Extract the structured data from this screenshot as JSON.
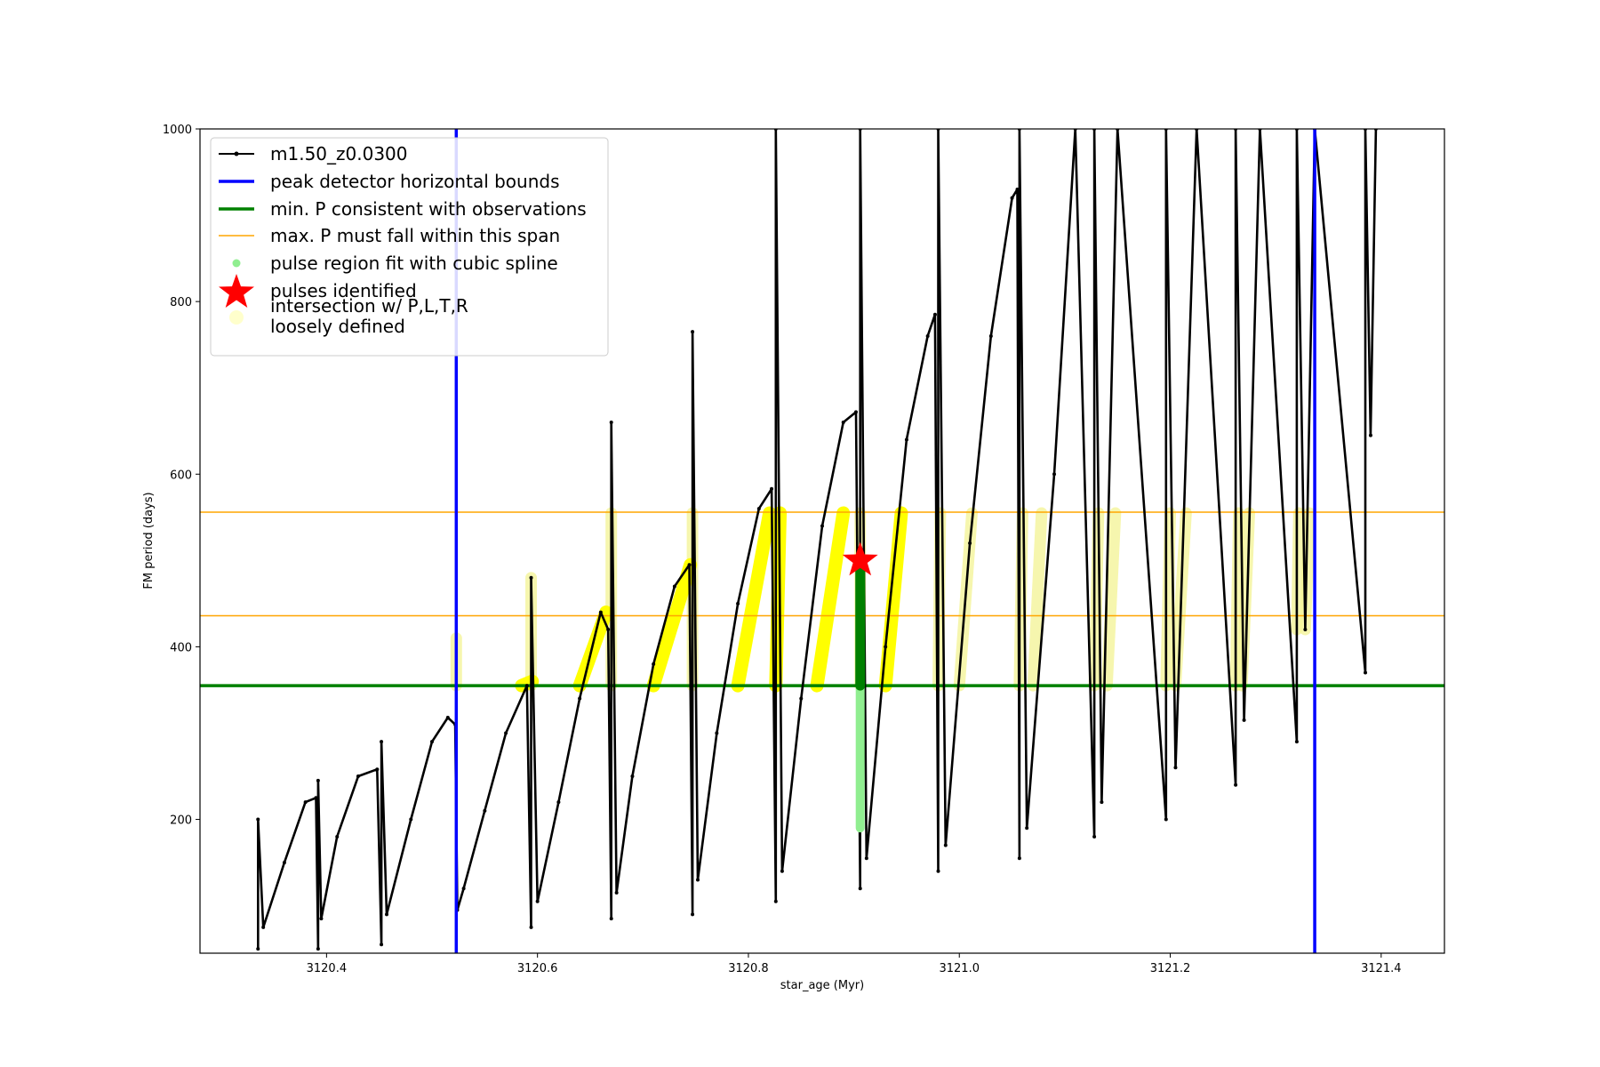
{
  "chart_data": {
    "type": "line",
    "title": "",
    "xlabel": "star_age (Myr)",
    "ylabel": "FM period (days)",
    "xlim": [
      3120.28,
      3121.46
    ],
    "ylim": [
      45,
      1000
    ],
    "xticks": [
      3120.4,
      3120.6,
      3120.8,
      3121.0,
      3121.2,
      3121.4
    ],
    "xtick_labels": [
      "3120.4",
      "3120.6",
      "3120.8",
      "3121.0",
      "3121.2",
      "3121.4"
    ],
    "yticks": [
      200,
      400,
      600,
      800,
      1000
    ],
    "ytick_labels": [
      "200",
      "400",
      "600",
      "800",
      "1000"
    ],
    "grid": false,
    "legend_position": "top-left",
    "legend": [
      {
        "label": "m1.50_z0.0300",
        "kind": "line-marker",
        "color": "#000000"
      },
      {
        "label": "peak detector horizontal bounds",
        "kind": "line",
        "color": "#0000ff"
      },
      {
        "label": "min. P consistent with observations",
        "kind": "line",
        "color": "#008000"
      },
      {
        "label": "max. P must fall within this span",
        "kind": "line",
        "color": "#ffa500"
      },
      {
        "label": "pulse region fit with cubic spline",
        "kind": "dot",
        "color": "#90ee90"
      },
      {
        "label": "pulses identified",
        "kind": "star",
        "color": "#ff0000"
      },
      {
        "label": "intersection w/ P,L,T,R\nloosely defined",
        "kind": "dot",
        "color": "#ffffcc"
      }
    ],
    "series": [
      {
        "name": "m1.50_z0.0300",
        "color": "#000000",
        "x": [
          3120.335,
          3120.335,
          3120.34,
          3120.36,
          3120.38,
          3120.39,
          3120.392,
          3120.392,
          3120.395,
          3120.41,
          3120.43,
          3120.448,
          3120.452,
          3120.452,
          3120.457,
          3120.48,
          3120.5,
          3120.515,
          3120.522,
          3120.524,
          3120.53,
          3120.55,
          3120.57,
          3120.59,
          3120.594,
          3120.594,
          3120.6,
          3120.62,
          3120.64,
          3120.66,
          3120.667,
          3120.67,
          3120.67,
          3120.675,
          3120.69,
          3120.71,
          3120.73,
          3120.744,
          3120.747,
          3120.747,
          3120.752,
          3120.77,
          3120.79,
          3120.81,
          3120.822,
          3120.826,
          3120.826,
          3120.832,
          3120.85,
          3120.87,
          3120.89,
          3120.902,
          3120.906,
          3120.906,
          3120.912,
          3120.93,
          3120.95,
          3120.97,
          3120.977,
          3120.98,
          3120.98,
          3120.987,
          3121.01,
          3121.03,
          3121.05,
          3121.055,
          3121.057,
          3121.057,
          3121.064,
          3121.09,
          3121.11,
          3121.128,
          3121.128,
          3121.135,
          3121.15,
          3121.15,
          3121.196,
          3121.196,
          3121.205,
          3121.225,
          3121.225,
          3121.262,
          3121.262,
          3121.27,
          3121.285,
          3121.285,
          3121.32,
          3121.32,
          3121.328,
          3121.337,
          3121.337,
          3121.385,
          3121.385,
          3121.39,
          3121.395
        ],
        "y": [
          50,
          200,
          75,
          150,
          220,
          225,
          50,
          245,
          85,
          180,
          250,
          258,
          55,
          290,
          90,
          200,
          290,
          318,
          310,
          95,
          120,
          210,
          300,
          355,
          75,
          480,
          105,
          220,
          340,
          440,
          420,
          85,
          660,
          115,
          250,
          380,
          470,
          495,
          90,
          765,
          130,
          300,
          450,
          560,
          583,
          105,
          1000,
          140,
          340,
          540,
          660,
          672,
          120,
          1000,
          155,
          400,
          640,
          760,
          785,
          140,
          1000,
          170,
          520,
          760,
          920,
          930,
          155,
          1000,
          190,
          600,
          1000,
          180,
          1000,
          220,
          1000,
          1000,
          200,
          1000,
          260,
          1000,
          1000,
          240,
          1000,
          315,
          1000,
          1000,
          290,
          1000,
          420,
          1000,
          1000,
          370,
          1000,
          645,
          1000
        ]
      }
    ],
    "vertical_lines": [
      {
        "name": "peak detector horizontal bounds",
        "x": 3120.523,
        "color": "#0000ff"
      },
      {
        "name": "peak detector horizontal bounds",
        "x": 3121.337,
        "color": "#0000ff"
      }
    ],
    "horizontal_lines": [
      {
        "name": "min. P consistent with observations",
        "y": 355,
        "color": "#008000"
      },
      {
        "name": "max. P must fall within this span",
        "y": 436,
        "color": "#ffa500"
      },
      {
        "name": "max. P must fall within this span",
        "y": 556,
        "color": "#ffa500"
      }
    ],
    "spline_region": {
      "name": "pulse region fit with cubic spline",
      "x": 3120.906,
      "y_range": [
        190,
        500
      ],
      "strong_range": [
        355,
        500
      ]
    },
    "pulses_identified": [
      {
        "name": "pulses identified",
        "x": 3120.906,
        "y": 500
      }
    ],
    "intersections": {
      "name": "intersection w/ P,L,T,R loosely defined",
      "bright": [
        {
          "x": [
            3120.585,
            3120.595
          ],
          "y": [
            355,
            360
          ]
        },
        {
          "x": [
            3120.64,
            3120.665
          ],
          "y": [
            355,
            440
          ]
        },
        {
          "x": [
            3120.71,
            3120.745
          ],
          "y": [
            355,
            495
          ]
        },
        {
          "x": [
            3120.79,
            3120.82
          ],
          "y": [
            355,
            555
          ]
        },
        {
          "x": [
            3120.826,
            3120.83
          ],
          "y": [
            355,
            555
          ]
        },
        {
          "x": [
            3120.865,
            3120.89
          ],
          "y": [
            355,
            555
          ]
        },
        {
          "x": [
            3120.93,
            3120.945
          ],
          "y": [
            355,
            555
          ]
        }
      ],
      "pale": [
        {
          "x": [
            3120.523,
            3120.523
          ],
          "y": [
            355,
            410
          ]
        },
        {
          "x": [
            3120.594,
            3120.594
          ],
          "y": [
            355,
            480
          ]
        },
        {
          "x": [
            3120.67,
            3120.67
          ],
          "y": [
            355,
            555
          ]
        },
        {
          "x": [
            3120.747,
            3120.747
          ],
          "y": [
            355,
            555
          ]
        },
        {
          "x": [
            3120.906,
            3120.906
          ],
          "y": [
            355,
            555
          ]
        },
        {
          "x": [
            3120.98,
            3120.982
          ],
          "y": [
            355,
            555
          ]
        },
        {
          "x": [
            3121.0,
            3121.012
          ],
          "y": [
            355,
            555
          ]
        },
        {
          "x": [
            3121.057,
            3121.06
          ],
          "y": [
            355,
            555
          ]
        },
        {
          "x": [
            3121.07,
            3121.078
          ],
          "y": [
            355,
            555
          ]
        },
        {
          "x": [
            3121.128,
            3121.132
          ],
          "y": [
            355,
            555
          ]
        },
        {
          "x": [
            3121.14,
            3121.148
          ],
          "y": [
            355,
            555
          ]
        },
        {
          "x": [
            3121.196,
            3121.2
          ],
          "y": [
            355,
            555
          ]
        },
        {
          "x": [
            3121.205,
            3121.215
          ],
          "y": [
            355,
            555
          ]
        },
        {
          "x": [
            3121.262,
            3121.265
          ],
          "y": [
            355,
            555
          ]
        },
        {
          "x": [
            3121.268,
            3121.275
          ],
          "y": [
            355,
            555
          ]
        },
        {
          "x": [
            3121.32,
            3121.322
          ],
          "y": [
            420,
            555
          ]
        },
        {
          "x": [
            3121.328,
            3121.332
          ],
          "y": [
            420,
            555
          ]
        }
      ]
    }
  }
}
